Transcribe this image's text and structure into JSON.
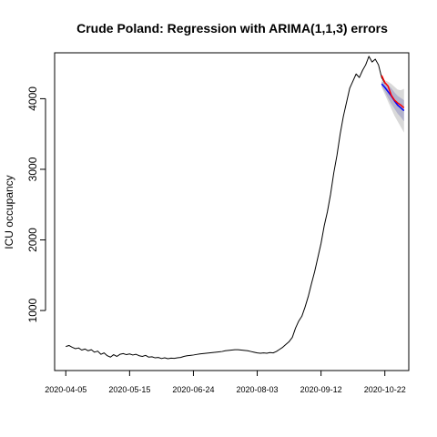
{
  "chart_data": {
    "type": "line",
    "title": "Crude Poland: Regression with ARIMA(1,1,3) errors",
    "xlabel": "",
    "ylabel": "ICU occupancy",
    "x_start": "2020-04-05",
    "x_ticks": [
      "2020-04-05",
      "2020-05-15",
      "2020-06-24",
      "2020-08-03",
      "2020-09-12",
      "2020-10-22"
    ],
    "y_ticks": [
      1000,
      2000,
      3000,
      4000
    ],
    "xlim": [
      "2020-03-29",
      "2020-11-06"
    ],
    "ylim": [
      150,
      4650
    ],
    "grid": false,
    "series": [
      {
        "role": "observed",
        "color": "#000000",
        "points": [
          [
            "2020-04-05",
            490
          ],
          [
            "2020-04-07",
            505
          ],
          [
            "2020-04-09",
            480
          ],
          [
            "2020-04-11",
            460
          ],
          [
            "2020-04-13",
            470
          ],
          [
            "2020-04-15",
            440
          ],
          [
            "2020-04-17",
            455
          ],
          [
            "2020-04-19",
            430
          ],
          [
            "2020-04-21",
            445
          ],
          [
            "2020-04-23",
            410
          ],
          [
            "2020-04-25",
            425
          ],
          [
            "2020-04-27",
            380
          ],
          [
            "2020-04-29",
            400
          ],
          [
            "2020-05-01",
            360
          ],
          [
            "2020-05-03",
            340
          ],
          [
            "2020-05-05",
            375
          ],
          [
            "2020-05-07",
            350
          ],
          [
            "2020-05-09",
            380
          ],
          [
            "2020-05-11",
            390
          ],
          [
            "2020-05-13",
            375
          ],
          [
            "2020-05-15",
            385
          ],
          [
            "2020-05-17",
            370
          ],
          [
            "2020-05-19",
            380
          ],
          [
            "2020-05-21",
            360
          ],
          [
            "2020-05-23",
            350
          ],
          [
            "2020-05-25",
            365
          ],
          [
            "2020-05-27",
            340
          ],
          [
            "2020-05-29",
            345
          ],
          [
            "2020-05-31",
            330
          ],
          [
            "2020-06-02",
            335
          ],
          [
            "2020-06-04",
            320
          ],
          [
            "2020-06-06",
            330
          ],
          [
            "2020-06-08",
            318
          ],
          [
            "2020-06-10",
            325
          ],
          [
            "2020-06-12",
            322
          ],
          [
            "2020-06-14",
            330
          ],
          [
            "2020-06-16",
            335
          ],
          [
            "2020-06-18",
            350
          ],
          [
            "2020-06-20",
            360
          ],
          [
            "2020-06-22",
            365
          ],
          [
            "2020-06-24",
            370
          ],
          [
            "2020-06-26",
            378
          ],
          [
            "2020-06-28",
            385
          ],
          [
            "2020-06-30",
            390
          ],
          [
            "2020-07-02",
            395
          ],
          [
            "2020-07-04",
            400
          ],
          [
            "2020-07-06",
            405
          ],
          [
            "2020-07-08",
            410
          ],
          [
            "2020-07-10",
            415
          ],
          [
            "2020-07-12",
            420
          ],
          [
            "2020-07-14",
            430
          ],
          [
            "2020-07-16",
            435
          ],
          [
            "2020-07-18",
            440
          ],
          [
            "2020-07-20",
            445
          ],
          [
            "2020-07-22",
            445
          ],
          [
            "2020-07-24",
            440
          ],
          [
            "2020-07-26",
            435
          ],
          [
            "2020-07-28",
            430
          ],
          [
            "2020-07-30",
            420
          ],
          [
            "2020-08-01",
            410
          ],
          [
            "2020-08-03",
            400
          ],
          [
            "2020-08-05",
            395
          ],
          [
            "2020-08-07",
            400
          ],
          [
            "2020-08-09",
            395
          ],
          [
            "2020-08-11",
            405
          ],
          [
            "2020-08-13",
            400
          ],
          [
            "2020-08-15",
            420
          ],
          [
            "2020-08-17",
            450
          ],
          [
            "2020-08-19",
            480
          ],
          [
            "2020-08-21",
            520
          ],
          [
            "2020-08-23",
            560
          ],
          [
            "2020-08-25",
            620
          ],
          [
            "2020-08-27",
            750
          ],
          [
            "2020-08-29",
            850
          ],
          [
            "2020-08-31",
            920
          ],
          [
            "2020-09-02",
            1050
          ],
          [
            "2020-09-04",
            1200
          ],
          [
            "2020-09-06",
            1380
          ],
          [
            "2020-09-08",
            1550
          ],
          [
            "2020-09-10",
            1750
          ],
          [
            "2020-09-12",
            1950
          ],
          [
            "2020-09-14",
            2200
          ],
          [
            "2020-09-16",
            2400
          ],
          [
            "2020-09-18",
            2650
          ],
          [
            "2020-09-20",
            2950
          ],
          [
            "2020-09-22",
            3200
          ],
          [
            "2020-09-24",
            3500
          ],
          [
            "2020-09-26",
            3750
          ],
          [
            "2020-09-28",
            3950
          ],
          [
            "2020-09-30",
            4150
          ],
          [
            "2020-10-02",
            4250
          ],
          [
            "2020-10-04",
            4350
          ],
          [
            "2020-10-06",
            4300
          ],
          [
            "2020-10-08",
            4400
          ],
          [
            "2020-10-10",
            4480
          ],
          [
            "2020-10-12",
            4600
          ],
          [
            "2020-10-14",
            4520
          ],
          [
            "2020-10-16",
            4560
          ],
          [
            "2020-10-18",
            4480
          ],
          [
            "2020-10-20",
            4300
          ],
          [
            "2020-10-22",
            4220
          ]
        ]
      },
      {
        "role": "forecast",
        "color": "#0000ff",
        "points": [
          [
            "2020-10-20",
            4210
          ],
          [
            "2020-10-22",
            4160
          ],
          [
            "2020-10-24",
            4100
          ],
          [
            "2020-10-26",
            4040
          ],
          [
            "2020-10-28",
            3970
          ],
          [
            "2020-10-30",
            3910
          ],
          [
            "2020-11-01",
            3870
          ],
          [
            "2020-11-03",
            3830
          ]
        ]
      },
      {
        "role": "actual",
        "color": "#ff0000",
        "points": [
          [
            "2020-10-20",
            4330
          ],
          [
            "2020-10-22",
            4230
          ],
          [
            "2020-10-24",
            4180
          ],
          [
            "2020-10-26",
            4050
          ],
          [
            "2020-10-28",
            3980
          ],
          [
            "2020-10-30",
            3940
          ],
          [
            "2020-11-01",
            3910
          ],
          [
            "2020-11-03",
            3870
          ]
        ]
      }
    ],
    "intervals": {
      "x": [
        "2020-10-20",
        "2020-10-22",
        "2020-10-24",
        "2020-10-26",
        "2020-10-28",
        "2020-10-30",
        "2020-11-01",
        "2020-11-03"
      ],
      "lower80": [
        4180,
        4100,
        4010,
        3930,
        3860,
        3790,
        3740,
        3680
      ],
      "upper80": [
        4240,
        4220,
        4190,
        4150,
        4090,
        4040,
        4010,
        3980
      ],
      "lower95": [
        4160,
        4060,
        3960,
        3860,
        3760,
        3680,
        3600,
        3520
      ],
      "upper95": [
        4260,
        4260,
        4240,
        4210,
        4170,
        4130,
        4120,
        4140
      ],
      "color80": "#b3b3cc",
      "color95": "#d9d9d9"
    }
  }
}
